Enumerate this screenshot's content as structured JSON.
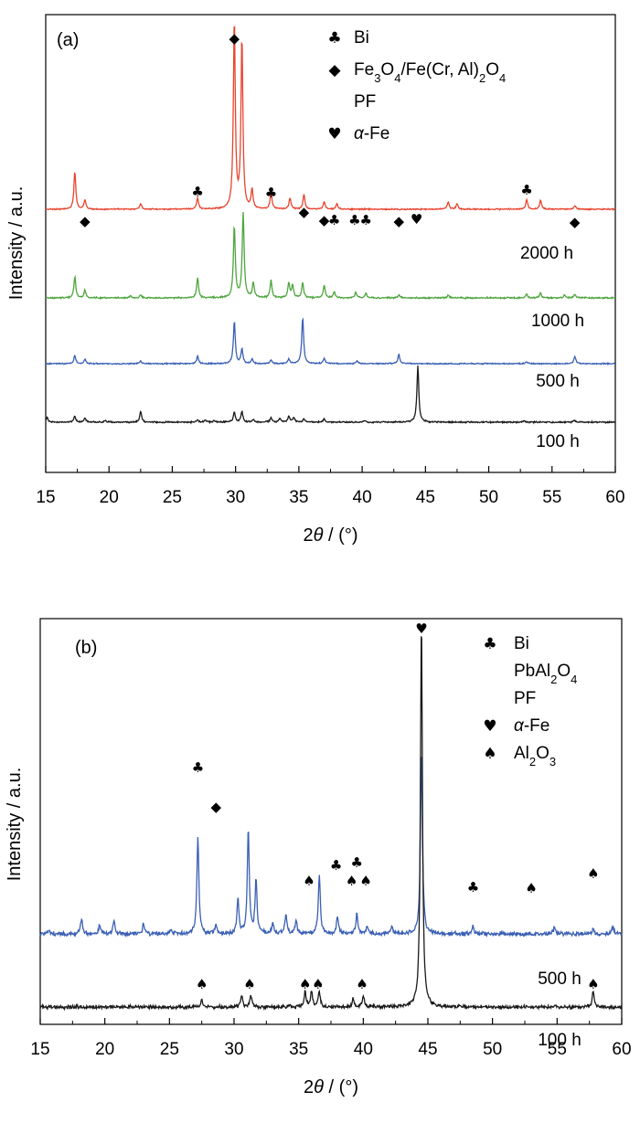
{
  "chart_data": [
    {
      "type": "line",
      "panel_label": "(a)",
      "xlabel": "2θ / (°)",
      "ylabel": "Intensity / a.u.",
      "xlim": [
        15,
        60
      ],
      "xticks": [
        "15",
        "20",
        "25",
        "30",
        "35",
        "40",
        "45",
        "50",
        "55",
        "60"
      ],
      "grid": false,
      "legend_position": "top-right",
      "legend": [
        {
          "symbol": "♣",
          "label": "Bi"
        },
        {
          "symbol": "◆",
          "label": "Fe3O4/Fe(Cr, Al)2O4"
        },
        {
          "symbol": "",
          "label": "PF"
        },
        {
          "symbol": "♥",
          "label": "α-Fe"
        }
      ],
      "series": [
        {
          "name": "2000 h",
          "color": "#e8442f",
          "peaks": [
            {
              "x": 17.3,
              "h": 0.2
            },
            {
              "x": 18.1,
              "h": 0.05
            },
            {
              "x": 22.5,
              "h": 0.03
            },
            {
              "x": 27.0,
              "h": 0.06
            },
            {
              "x": 29.9,
              "h": 1.0
            },
            {
              "x": 30.5,
              "h": 0.9
            },
            {
              "x": 31.3,
              "h": 0.1
            },
            {
              "x": 32.8,
              "h": 0.09
            },
            {
              "x": 34.3,
              "h": 0.06
            },
            {
              "x": 35.4,
              "h": 0.08
            },
            {
              "x": 37.0,
              "h": 0.04
            },
            {
              "x": 38.0,
              "h": 0.03
            },
            {
              "x": 46.8,
              "h": 0.04
            },
            {
              "x": 47.5,
              "h": 0.03
            },
            {
              "x": 53.0,
              "h": 0.05
            },
            {
              "x": 54.1,
              "h": 0.05
            },
            {
              "x": 56.8,
              "h": 0.02
            }
          ]
        },
        {
          "name": "1000 h",
          "color": "#4ea53e",
          "peaks": [
            {
              "x": 17.3,
              "h": 0.22
            },
            {
              "x": 18.1,
              "h": 0.08
            },
            {
              "x": 21.7,
              "h": 0.02
            },
            {
              "x": 22.5,
              "h": 0.03
            },
            {
              "x": 27.0,
              "h": 0.21
            },
            {
              "x": 29.9,
              "h": 0.74
            },
            {
              "x": 30.6,
              "h": 0.88
            },
            {
              "x": 31.4,
              "h": 0.16
            },
            {
              "x": 32.8,
              "h": 0.18
            },
            {
              "x": 34.2,
              "h": 0.15
            },
            {
              "x": 34.5,
              "h": 0.13
            },
            {
              "x": 35.3,
              "h": 0.16
            },
            {
              "x": 37.0,
              "h": 0.13
            },
            {
              "x": 37.8,
              "h": 0.06
            },
            {
              "x": 39.5,
              "h": 0.06
            },
            {
              "x": 40.3,
              "h": 0.05
            },
            {
              "x": 42.9,
              "h": 0.03
            },
            {
              "x": 46.8,
              "h": 0.03
            },
            {
              "x": 53.0,
              "h": 0.04
            },
            {
              "x": 54.1,
              "h": 0.05
            },
            {
              "x": 56.0,
              "h": 0.03
            },
            {
              "x": 56.8,
              "h": 0.04
            }
          ]
        },
        {
          "name": "500 h",
          "color": "#3a5fb4",
          "peaks": [
            {
              "x": 17.3,
              "h": 0.09
            },
            {
              "x": 18.1,
              "h": 0.05
            },
            {
              "x": 22.5,
              "h": 0.03
            },
            {
              "x": 27.0,
              "h": 0.08
            },
            {
              "x": 29.9,
              "h": 0.46
            },
            {
              "x": 30.5,
              "h": 0.16
            },
            {
              "x": 31.3,
              "h": 0.05
            },
            {
              "x": 32.8,
              "h": 0.04
            },
            {
              "x": 34.2,
              "h": 0.05
            },
            {
              "x": 35.3,
              "h": 0.5
            },
            {
              "x": 37.0,
              "h": 0.06
            },
            {
              "x": 39.6,
              "h": 0.03
            },
            {
              "x": 42.9,
              "h": 0.1
            },
            {
              "x": 53.0,
              "h": 0.02
            },
            {
              "x": 56.8,
              "h": 0.08
            }
          ]
        },
        {
          "name": "100 h",
          "color": "#1a1a1a",
          "peaks": [
            {
              "x": 15.1,
              "h": 0.06
            },
            {
              "x": 17.3,
              "h": 0.08
            },
            {
              "x": 18.1,
              "h": 0.05
            },
            {
              "x": 19.7,
              "h": 0.02
            },
            {
              "x": 22.5,
              "h": 0.14
            },
            {
              "x": 27.0,
              "h": 0.03
            },
            {
              "x": 27.6,
              "h": 0.03
            },
            {
              "x": 28.3,
              "h": 0.02
            },
            {
              "x": 29.9,
              "h": 0.13
            },
            {
              "x": 30.5,
              "h": 0.14
            },
            {
              "x": 31.4,
              "h": 0.04
            },
            {
              "x": 32.8,
              "h": 0.06
            },
            {
              "x": 33.5,
              "h": 0.05
            },
            {
              "x": 34.2,
              "h": 0.08
            },
            {
              "x": 34.6,
              "h": 0.06
            },
            {
              "x": 35.4,
              "h": 0.04
            },
            {
              "x": 37.0,
              "h": 0.04
            },
            {
              "x": 40.2,
              "h": 0.02
            },
            {
              "x": 44.4,
              "h": 0.73
            },
            {
              "x": 52.8,
              "h": 0.02
            },
            {
              "x": 56.8,
              "h": 0.02
            }
          ]
        }
      ],
      "annotations": [
        {
          "symbol": "◆",
          "x": 18.1
        },
        {
          "symbol": "♣",
          "x": 27.0
        },
        {
          "symbol": "◆",
          "x": 29.9
        },
        {
          "symbol": "♣",
          "x": 32.8
        },
        {
          "symbol": "◆",
          "x": 35.4
        },
        {
          "symbol": "◆",
          "x": 37.0
        },
        {
          "symbol": "♣",
          "x": 37.8
        },
        {
          "symbol": "♣",
          "x": 39.4
        },
        {
          "symbol": "♣",
          "x": 40.3
        },
        {
          "symbol": "◆",
          "x": 42.9
        },
        {
          "symbol": "♥",
          "x": 44.3
        },
        {
          "symbol": "♣",
          "x": 53.0
        },
        {
          "symbol": "◆",
          "x": 56.8
        }
      ]
    },
    {
      "type": "line",
      "panel_label": "(b)",
      "xlabel": "2θ / (°)",
      "ylabel": "Intensity / a.u.",
      "xlim": [
        15,
        60
      ],
      "xticks": [
        "15",
        "20",
        "25",
        "30",
        "35",
        "40",
        "45",
        "50",
        "55",
        "60"
      ],
      "grid": false,
      "legend_position": "top-right",
      "legend": [
        {
          "symbol": "♣",
          "label": "Bi"
        },
        {
          "symbol": "",
          "label": "PbAl2O4"
        },
        {
          "symbol": "",
          "label": "PF"
        },
        {
          "symbol": "♥",
          "label": "α-Fe"
        },
        {
          "symbol": "♠",
          "label": "Al2O3"
        }
      ],
      "series": [
        {
          "name": "500 h",
          "color": "#3a5fb4",
          "peaks": [
            {
              "x": 15.7,
              "h": 0.02
            },
            {
              "x": 18.2,
              "h": 0.06
            },
            {
              "x": 19.6,
              "h": 0.04
            },
            {
              "x": 20.7,
              "h": 0.05
            },
            {
              "x": 23.0,
              "h": 0.04
            },
            {
              "x": 25.1,
              "h": 0.02
            },
            {
              "x": 27.2,
              "h": 0.4
            },
            {
              "x": 28.6,
              "h": 0.04
            },
            {
              "x": 30.3,
              "h": 0.14
            },
            {
              "x": 31.1,
              "h": 0.42
            },
            {
              "x": 31.7,
              "h": 0.22
            },
            {
              "x": 33.0,
              "h": 0.04
            },
            {
              "x": 34.0,
              "h": 0.08
            },
            {
              "x": 34.8,
              "h": 0.05
            },
            {
              "x": 36.6,
              "h": 0.24
            },
            {
              "x": 38.0,
              "h": 0.07
            },
            {
              "x": 39.5,
              "h": 0.08
            },
            {
              "x": 40.3,
              "h": 0.03
            },
            {
              "x": 42.2,
              "h": 0.03
            },
            {
              "x": 44.5,
              "h": 0.75
            },
            {
              "x": 48.5,
              "h": 0.03
            },
            {
              "x": 54.8,
              "h": 0.03
            },
            {
              "x": 57.8,
              "h": 0.02
            },
            {
              "x": 59.3,
              "h": 0.03
            }
          ]
        },
        {
          "name": "100 h",
          "color": "#1a1a1a",
          "peaks": [
            {
              "x": 27.5,
              "h": 0.02
            },
            {
              "x": 30.6,
              "h": 0.03
            },
            {
              "x": 31.3,
              "h": 0.03
            },
            {
              "x": 35.5,
              "h": 0.04
            },
            {
              "x": 36.0,
              "h": 0.04
            },
            {
              "x": 36.6,
              "h": 0.04
            },
            {
              "x": 39.2,
              "h": 0.02
            },
            {
              "x": 40.0,
              "h": 0.03
            },
            {
              "x": 44.5,
              "h": 1.0
            },
            {
              "x": 57.8,
              "h": 0.04
            }
          ]
        }
      ],
      "annotations": [
        {
          "symbol": "♣",
          "x": 27.2
        },
        {
          "symbol": "◆",
          "x": 28.6
        },
        {
          "symbol": "♠",
          "x": 27.5
        },
        {
          "symbol": "♠",
          "x": 31.2
        },
        {
          "symbol": "♠",
          "x": 35.5
        },
        {
          "symbol": "♠",
          "x": 36.5
        },
        {
          "symbol": "♣",
          "x": 37.9
        },
        {
          "symbol": "♣",
          "x": 39.5
        },
        {
          "symbol": "♠",
          "x": 35.8
        },
        {
          "symbol": "♠",
          "x": 39.1
        },
        {
          "symbol": "♠",
          "x": 40.2
        },
        {
          "symbol": "♥",
          "x": 44.5
        },
        {
          "symbol": "♣",
          "x": 48.5
        },
        {
          "symbol": "♠",
          "x": 53.0
        },
        {
          "symbol": "♠",
          "x": 57.8
        },
        {
          "symbol": "♠",
          "x": 39.9
        },
        {
          "symbol": "♠",
          "x": 57.8
        }
      ]
    }
  ]
}
